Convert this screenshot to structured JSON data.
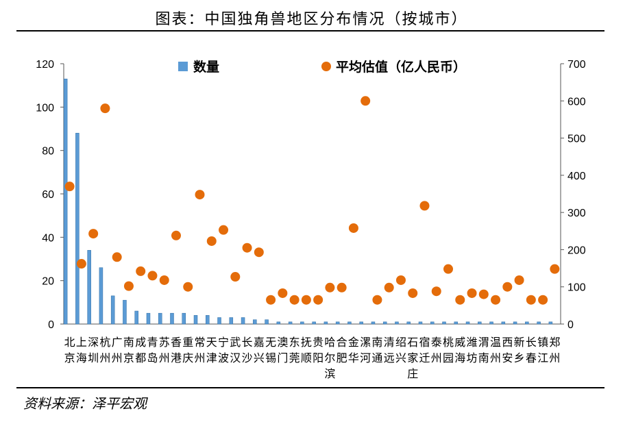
{
  "title": "图表：中国独角兽地区分布情况（按城市）",
  "source": "资料来源：泽平宏观",
  "chart_data": {
    "type": "bar+scatter",
    "categories": [
      [
        "北",
        "京"
      ],
      [
        "上",
        "海"
      ],
      [
        "深",
        "圳"
      ],
      [
        "杭",
        "州"
      ],
      [
        "广",
        "州"
      ],
      [
        "南",
        "京"
      ],
      [
        "成",
        "都"
      ],
      [
        "青",
        "岛"
      ],
      [
        "苏",
        "州"
      ],
      [
        "香",
        "港"
      ],
      [
        "重",
        "庆"
      ],
      [
        "常",
        "州"
      ],
      [
        "天",
        "津"
      ],
      [
        "宁",
        "波"
      ],
      [
        "武",
        "汉"
      ],
      [
        "长",
        "沙"
      ],
      [
        "嘉",
        "兴"
      ],
      [
        "无",
        "锡"
      ],
      [
        "澳",
        "门"
      ],
      [
        "东",
        "莞"
      ],
      [
        "抚",
        "顺"
      ],
      [
        "贵",
        "阳"
      ],
      [
        "哈",
        "尔",
        "滨"
      ],
      [
        "合",
        "肥"
      ],
      [
        "金",
        "华"
      ],
      [
        "漯",
        "河"
      ],
      [
        "南",
        "通"
      ],
      [
        "清",
        "远"
      ],
      [
        "绍",
        "兴"
      ],
      [
        "石",
        "家",
        "庄"
      ],
      [
        "宿",
        "迁"
      ],
      [
        "泰",
        "州"
      ],
      [
        "桃",
        "园"
      ],
      [
        "威",
        "海"
      ],
      [
        "潍",
        "坊"
      ],
      [
        "渭",
        "南"
      ],
      [
        "温",
        "州"
      ],
      [
        "西",
        "安"
      ],
      [
        "新",
        "乡"
      ],
      [
        "长",
        "春"
      ],
      [
        "镇",
        "江"
      ],
      [
        "郑",
        "州"
      ]
    ],
    "series": [
      {
        "name": "数量",
        "type": "bar",
        "axis": "left",
        "color": "#5b9bd5",
        "values": [
          113,
          88,
          34,
          26,
          13,
          11,
          6,
          5,
          5,
          5,
          5,
          4,
          4,
          3,
          3,
          3,
          2,
          2,
          1,
          1,
          1,
          1,
          1,
          1,
          1,
          1,
          1,
          1,
          1,
          1,
          1,
          1,
          1,
          1,
          1,
          1,
          1,
          1,
          1,
          1,
          1,
          1
        ]
      },
      {
        "name": "平均估值（亿人民币）",
        "type": "scatter",
        "axis": "right",
        "color": "#e46c0a",
        "values": [
          370,
          162,
          243,
          580,
          180,
          102,
          142,
          130,
          118,
          238,
          100,
          348,
          223,
          253,
          127,
          205,
          193,
          65,
          83,
          65,
          65,
          65,
          98,
          98,
          258,
          600,
          65,
          98,
          118,
          83,
          318,
          88,
          148,
          65,
          83,
          80,
          65,
          100,
          118,
          65,
          65,
          148
        ]
      }
    ],
    "y_left": {
      "min": 0,
      "max": 120,
      "ticks": [
        0,
        20,
        40,
        60,
        80,
        100,
        120
      ]
    },
    "y_right": {
      "min": 0,
      "max": 700,
      "ticks": [
        0,
        100,
        200,
        300,
        400,
        500,
        600,
        700
      ]
    },
    "legend_position": "top"
  }
}
